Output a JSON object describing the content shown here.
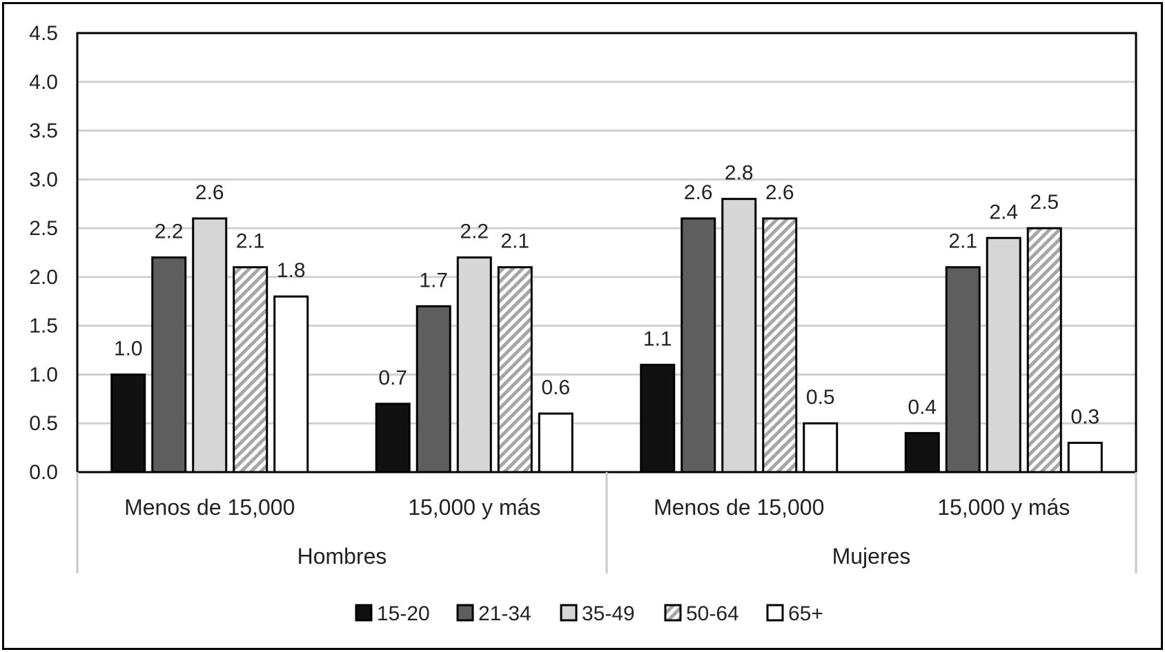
{
  "chart_data": {
    "type": "bar",
    "groups": [
      {
        "label": "Hombres",
        "categories": [
          "Menos de 15,000",
          "15,000 y más"
        ]
      },
      {
        "label": "Mujeres",
        "categories": [
          "Menos de 15,000",
          "15,000 y más"
        ]
      }
    ],
    "series": [
      {
        "name": "15-20",
        "values": [
          1.0,
          0.7,
          1.1,
          0.4
        ],
        "labels": [
          "1.0",
          "0.7",
          "1.1",
          "0.4"
        ],
        "pattern": "solid-black",
        "color": "#111111"
      },
      {
        "name": "21-34",
        "values": [
          2.2,
          1.7,
          2.6,
          2.1
        ],
        "labels": [
          "2.2",
          "1.7",
          "2.6",
          "2.1"
        ],
        "pattern": "solid-dark-gray",
        "color": "#5e5e5e"
      },
      {
        "name": "35-49",
        "values": [
          2.6,
          2.2,
          2.8,
          2.4
        ],
        "labels": [
          "2.6",
          "2.2",
          "2.8",
          "2.4"
        ],
        "pattern": "solid-light-gray",
        "color": "#d6d6d6"
      },
      {
        "name": "50-64",
        "values": [
          2.1,
          2.1,
          2.6,
          2.5
        ],
        "labels": [
          "2.1",
          "2.1",
          "2.6",
          "2.5"
        ],
        "pattern": "diagonal-hatch",
        "color": "#a6a6a6"
      },
      {
        "name": "65+",
        "values": [
          1.8,
          0.6,
          0.5,
          0.3
        ],
        "labels": [
          "1.8",
          "0.6",
          "0.5",
          "0.3"
        ],
        "pattern": "white",
        "color": "#ffffff"
      }
    ],
    "ylim": [
      0,
      4.5
    ],
    "yticks": [
      "0.0",
      "0.5",
      "1.0",
      "1.5",
      "2.0",
      "2.5",
      "3.0",
      "3.5",
      "4.0",
      "4.5"
    ],
    "grid": true,
    "legend_position": "bottom"
  }
}
